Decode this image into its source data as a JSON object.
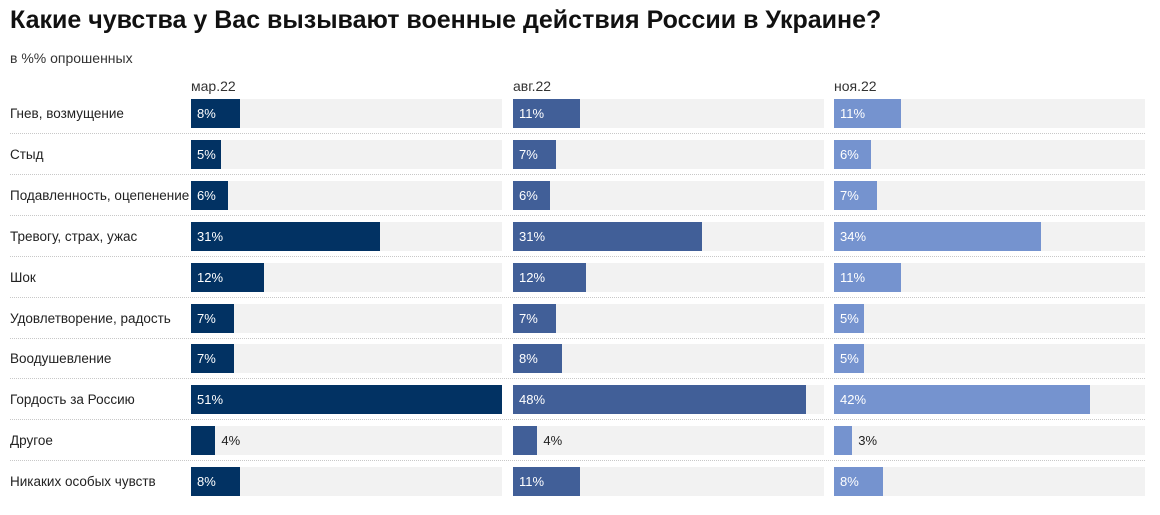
{
  "chart_data": {
    "type": "bar",
    "title": "Какие чувства у Вас вызывают военные действия России в Украине?",
    "subtitle": "в %% опрошенных",
    "xlim": [
      0,
      51
    ],
    "categories": [
      "Гнев, возмущение",
      "Стыд",
      "Подавленность, оцепенение",
      "Тревогу, страх, ужас",
      "Шок",
      "Удовлетворение, радость",
      "Воодушевление",
      "Гордость за Россию",
      "Другое",
      "Никаких особых чувств"
    ],
    "series": [
      {
        "name": "мар.22",
        "color": "#023263",
        "values": [
          8,
          5,
          6,
          31,
          12,
          7,
          7,
          51,
          4,
          8
        ]
      },
      {
        "name": "авг.22",
        "color": "#415f98",
        "values": [
          11,
          7,
          6,
          31,
          12,
          7,
          8,
          48,
          4,
          11
        ]
      },
      {
        "name": "ноя.22",
        "color": "#7593cf",
        "values": [
          11,
          6,
          7,
          34,
          11,
          5,
          5,
          42,
          3,
          8
        ]
      }
    ],
    "value_suffix": "%"
  }
}
